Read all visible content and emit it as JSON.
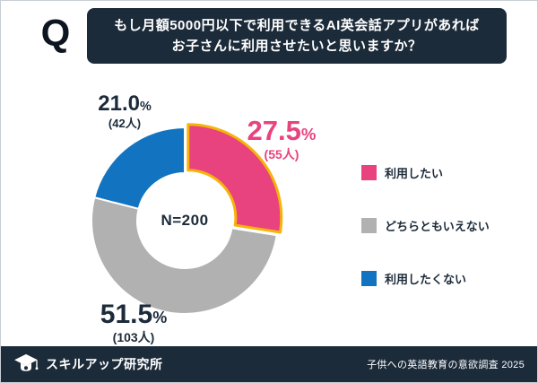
{
  "header": {
    "q_icon": "Q",
    "title_line1": "もし月額5000円以下で利用できるAI英会話アプリがあれば",
    "title_line2": "お子さんに利用させたいと思いますか？"
  },
  "chart_data": {
    "type": "pie",
    "donut": true,
    "center_label": "N=200",
    "total_n": 200,
    "start_angle": "top",
    "direction": "clockwise",
    "hole_ratio": 0.51,
    "legend_position": "right",
    "segments": [
      {
        "key": "want-to-use",
        "label": "利用したい",
        "percent": 27.5,
        "percent_text": "27.5",
        "percent_symbol": "%",
        "count": 55,
        "count_text": "(55人)",
        "color": "#e8437e",
        "explode": 5,
        "outline": "#f6b40a"
      },
      {
        "key": "neutral",
        "label": "どちらともいえない",
        "percent": 51.5,
        "percent_text": "51.5",
        "percent_symbol": "%",
        "count": 103,
        "count_text": "(103人)",
        "color": "#b1b1b1"
      },
      {
        "key": "dont-want-to-use",
        "label": "利用したくない",
        "percent": 21.0,
        "percent_text": "21.0",
        "percent_symbol": "%",
        "count": 42,
        "count_text": "(42人)",
        "color": "#1274c0"
      }
    ]
  },
  "footer": {
    "brand": "スキルアップ研究所",
    "source": "子供への英語教育の意欲調査 2025"
  },
  "colors": {
    "navy": "#1c2b3a",
    "pink": "#e8437e",
    "gray": "#b1b1b1",
    "blue": "#1274c0",
    "highlight_yellow": "#f6b40a"
  }
}
